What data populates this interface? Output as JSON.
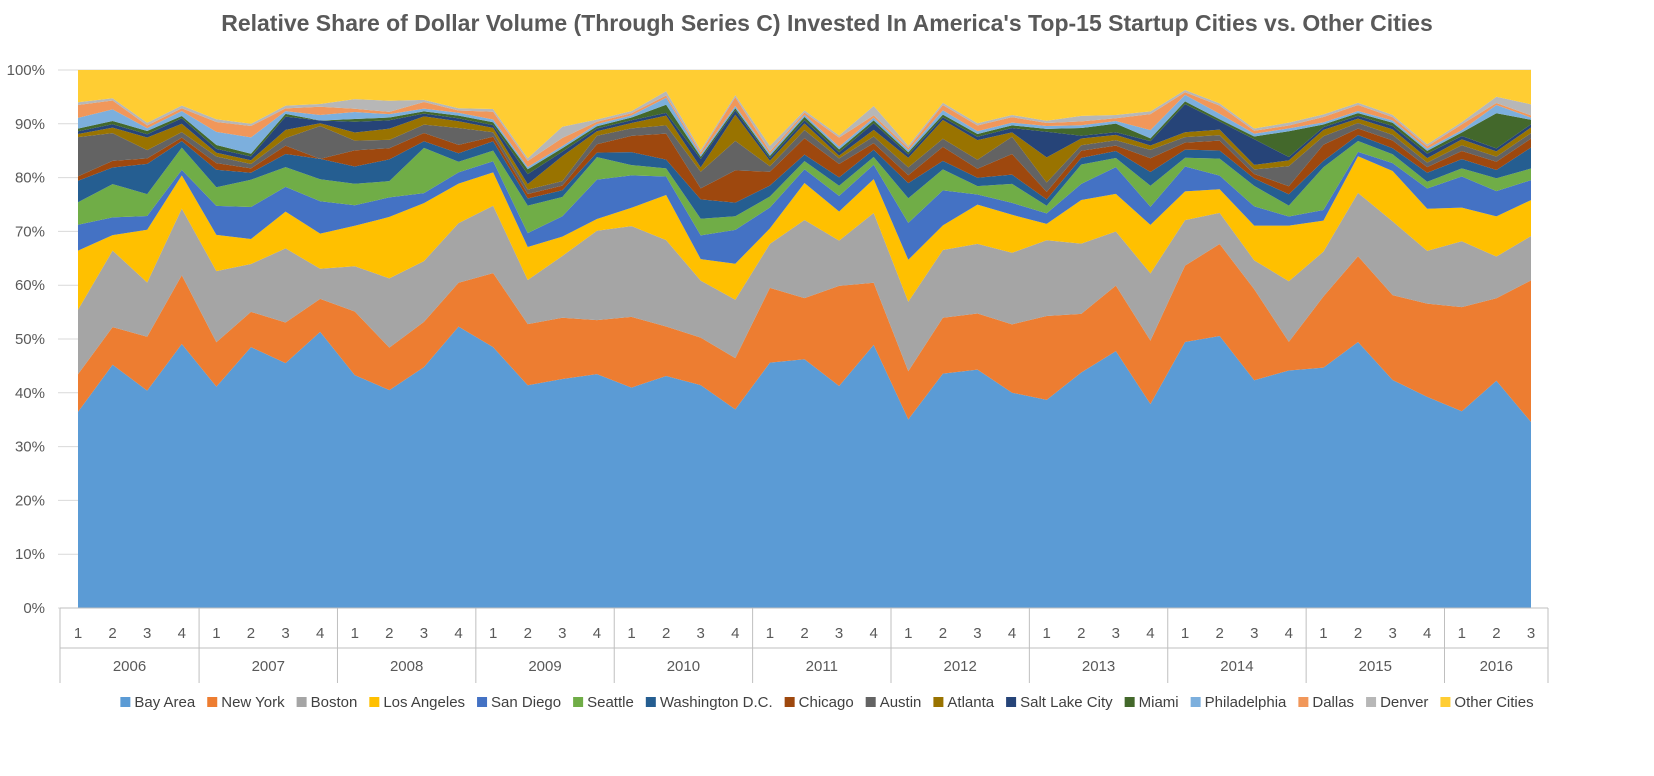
{
  "chart_data": {
    "type": "area",
    "stacked": "percent",
    "title": "Relative Share of Dollar Volume (Through Series C) Invested In America's Top-15 Startup Cities vs. Other Cities",
    "xlabel": "",
    "ylabel": "",
    "ylim": [
      0,
      100
    ],
    "y_ticks": [
      "0%",
      "10%",
      "20%",
      "30%",
      "40%",
      "50%",
      "60%",
      "70%",
      "80%",
      "90%",
      "100%"
    ],
    "x": [
      "1",
      "2",
      "3",
      "4",
      "1",
      "2",
      "3",
      "4",
      "1",
      "2",
      "3",
      "4",
      "1",
      "2",
      "3",
      "4",
      "1",
      "2",
      "3",
      "4",
      "1",
      "2",
      "3",
      "4",
      "1",
      "2",
      "3",
      "4",
      "1",
      "2",
      "3",
      "4",
      "1",
      "2",
      "3",
      "4",
      "1",
      "2",
      "3",
      "4",
      "1",
      "2",
      "3"
    ],
    "year_groups": [
      {
        "label": "2006",
        "count": 4
      },
      {
        "label": "2007",
        "count": 4
      },
      {
        "label": "2008",
        "count": 4
      },
      {
        "label": "2009",
        "count": 4
      },
      {
        "label": "2010",
        "count": 4
      },
      {
        "label": "2011",
        "count": 4
      },
      {
        "label": "2012",
        "count": 4
      },
      {
        "label": "2013",
        "count": 4
      },
      {
        "label": "2014",
        "count": 4
      },
      {
        "label": "2015",
        "count": 4
      },
      {
        "label": "2016",
        "count": 3
      }
    ],
    "grid": "horizontal",
    "legend_position": "bottom",
    "series": [
      {
        "name": "Bay Area",
        "color": "#5B9BD5",
        "values": [
          36.5,
          43.9,
          39.6,
          47.6,
          40.4,
          48.0,
          44.6,
          50.3,
          43.2,
          39.0,
          43.6,
          50.0,
          46.9,
          40.4,
          40.4,
          41.6,
          40.8,
          42.7,
          40.3,
          36.4,
          44.6,
          45.6,
          39.7,
          47.5,
          33.7,
          43.6,
          42.5,
          39.7,
          35.7,
          42.6,
          47.9,
          37.0,
          49.1,
          49.7,
          40.1,
          41.5,
          45.0,
          48.7,
          41.1,
          37.6,
          34.0,
          44.1,
          33.6
        ]
      },
      {
        "name": "New York",
        "color": "#ED7D31",
        "values": [
          7.0,
          6.8,
          9.8,
          12.4,
          8.1,
          6.5,
          7.4,
          6.0,
          11.8,
          7.6,
          8.2,
          7.8,
          13.3,
          11.1,
          10.8,
          9.6,
          13.1,
          9.1,
          8.6,
          9.4,
          13.6,
          11.2,
          17.9,
          11.2,
          8.6,
          10.4,
          10.0,
          12.6,
          14.4,
          10.6,
          12.2,
          11.5,
          14.1,
          16.8,
          16.0,
          5.0,
          13.3,
          15.7,
          15.3,
          16.6,
          18.0,
          16.0,
          25.6
        ]
      },
      {
        "name": "Boston",
        "color": "#A5A5A5",
        "values": [
          12.0,
          13.8,
          9.9,
          12.0,
          13.0,
          8.8,
          13.5,
          5.5,
          8.4,
          12.4,
          11.0,
          10.6,
          12.1,
          8.0,
          10.9,
          15.9,
          16.8,
          15.9,
          10.3,
          10.7,
          8.0,
          14.3,
          8.1,
          12.6,
          12.4,
          12.6,
          12.4,
          13.2,
          13.0,
          12.7,
          10.1,
          12.2,
          8.4,
          5.7,
          5.1,
          10.6,
          8.4,
          11.6,
          13.3,
          9.4,
          11.4,
          8.1,
          8.0
        ]
      },
      {
        "name": "Los Angeles",
        "color": "#FFC000",
        "values": [
          11.0,
          2.8,
          9.6,
          6.0,
          6.6,
          4.6,
          6.7,
          6.4,
          7.5,
          11.0,
          10.5,
          7.0,
          6.0,
          6.0,
          3.4,
          2.1,
          3.4,
          8.3,
          3.9,
          6.6,
          2.8,
          6.8,
          5.2,
          6.1,
          7.5,
          4.6,
          7.0,
          7.0,
          2.8,
          7.9,
          7.0,
          8.8,
          5.3,
          4.3,
          6.1,
          9.7,
          5.8,
          6.7,
          9.1,
          7.5,
          5.8,
          7.8,
          6.5
        ]
      },
      {
        "name": "San Diego",
        "color": "#4472C4",
        "values": [
          4.8,
          3.2,
          2.5,
          1.0,
          5.3,
          5.9,
          4.5,
          5.9,
          3.8,
          3.5,
          1.8,
          2.0,
          2.0,
          2.5,
          3.6,
          7.0,
          6.0,
          3.4,
          4.3,
          6.2,
          3.8,
          2.5,
          2.8,
          2.6,
          6.6,
          6.5,
          1.8,
          2.2,
          1.8,
          2.9,
          5.0,
          3.3,
          4.6,
          2.5,
          3.4,
          1.6,
          2.0,
          0.8,
          1.4,
          3.6,
          5.4,
          4.9,
          3.6
        ]
      },
      {
        "name": "Seattle",
        "color": "#70AD47",
        "values": [
          4.2,
          6.0,
          4.0,
          4.0,
          3.4,
          5.0,
          3.6,
          4.0,
          4.0,
          2.9,
          8.2,
          1.9,
          1.9,
          5.0,
          3.4,
          4.0,
          1.9,
          1.5,
          3.0,
          2.5,
          2.0,
          1.5,
          1.8,
          1.4,
          4.4,
          3.9,
          1.5,
          3.5,
          1.3,
          3.5,
          1.7,
          3.8,
          1.6,
          3.1,
          3.6,
          1.9,
          8.0,
          2.0,
          1.6,
          1.2,
          1.4,
          2.5,
          2.1
        ]
      },
      {
        "name": "Washington D.C.",
        "color": "#255E91",
        "values": [
          4.0,
          3.0,
          5.5,
          1.2,
          3.2,
          1.3,
          2.4,
          3.7,
          3.2,
          3.9,
          1.2,
          1.5,
          1.7,
          1.3,
          1.2,
          0.8,
          2.4,
          1.6,
          3.5,
          2.5,
          2.0,
          1.2,
          1.5,
          1.3,
          2.7,
          1.6,
          1.5,
          1.7,
          1.1,
          1.2,
          1.3,
          2.5,
          1.5,
          1.5,
          1.3,
          2.0,
          1.2,
          1.1,
          1.1,
          1.6,
          1.6,
          1.6,
          3.8
        ]
      },
      {
        "name": "Chicago",
        "color": "#9E480E",
        "values": [
          0.8,
          1.2,
          1.0,
          0.6,
          1.2,
          0.8,
          1.5,
          0.0,
          3.0,
          2.0,
          1.5,
          1.5,
          0.8,
          0.8,
          0.8,
          1.5,
          3.0,
          4.8,
          2.0,
          5.9,
          2.5,
          3.0,
          2.4,
          1.2,
          1.4,
          2.6,
          1.6,
          3.8,
          1.3,
          1.3,
          1.0,
          2.5,
          1.3,
          1.8,
          0.8,
          1.4,
          3.0,
          1.2,
          1.4,
          1.0,
          1.4,
          1.6,
          1.6
        ]
      },
      {
        "name": "Austin",
        "color": "#636363",
        "values": [
          7.3,
          5.0,
          1.5,
          1.0,
          1.2,
          0.8,
          1.4,
          6.0,
          1.8,
          1.5,
          1.5,
          3.0,
          0.8,
          0.8,
          0.8,
          1.5,
          1.4,
          1.5,
          3.0,
          5.4,
          1.0,
          1.5,
          1.0,
          1.2,
          1.4,
          1.5,
          1.6,
          3.2,
          1.6,
          1.0,
          1.0,
          1.5,
          1.0,
          1.0,
          0.8,
          3.5,
          1.6,
          1.0,
          1.0,
          0.8,
          1.0,
          1.0,
          1.0
        ]
      },
      {
        "name": "Atlanta",
        "color": "#997300",
        "values": [
          0.6,
          1.0,
          2.3,
          1.5,
          0.7,
          0.7,
          1.5,
          0.5,
          1.5,
          2.0,
          1.5,
          1.2,
          0.8,
          1.0,
          4.4,
          0.8,
          1.0,
          1.8,
          0.8,
          4.8,
          1.0,
          1.2,
          0.5,
          1.2,
          1.7,
          3.5,
          3.5,
          0.8,
          4.3,
          1.2,
          1.0,
          0.8,
          0.9,
          1.0,
          0.8,
          1.0,
          1.2,
          0.8,
          1.0,
          0.8,
          1.0,
          1.0,
          1.0
        ]
      },
      {
        "name": "Salt Lake City",
        "color": "#264478",
        "values": [
          0.5,
          0.6,
          0.6,
          1.0,
          0.7,
          0.7,
          2.4,
          0.5,
          2.0,
          1.5,
          0.5,
          0.5,
          0.5,
          1.8,
          0.8,
          0.5,
          0.5,
          0.5,
          1.5,
          0.8,
          0.5,
          0.6,
          0.6,
          1.2,
          0.6,
          0.5,
          0.6,
          0.8,
          4.4,
          0.5,
          0.5,
          0.8,
          5.2,
          1.5,
          4.5,
          0.6,
          0.5,
          0.5,
          0.6,
          0.8,
          0.6,
          0.6,
          0.6
        ]
      },
      {
        "name": "Miami",
        "color": "#43682B",
        "values": [
          0.5,
          0.6,
          0.6,
          0.4,
          0.7,
          0.5,
          0.5,
          0.0,
          0.5,
          0.5,
          0.4,
          0.5,
          0.5,
          0.9,
          0.6,
          0.4,
          0.5,
          1.5,
          0.4,
          0.4,
          0.4,
          0.6,
          0.5,
          0.5,
          0.4,
          0.5,
          0.5,
          0.5,
          0.5,
          1.4,
          1.6,
          0.5,
          0.5,
          0.4,
          0.5,
          4.5,
          0.5,
          0.5,
          0.6,
          0.5,
          0.6,
          6.8,
          0.8
        ]
      },
      {
        "name": "Philadelphia",
        "color": "#7CAFDD",
        "values": [
          2.0,
          2.1,
          0.5,
          0.9,
          2.4,
          3.0,
          0.5,
          1.0,
          1.3,
          0.6,
          0.5,
          0.5,
          0.5,
          0.4,
          0.4,
          0.4,
          0.4,
          1.3,
          0.4,
          0.4,
          0.4,
          0.4,
          0.5,
          0.5,
          0.4,
          0.8,
          0.5,
          0.5,
          0.5,
          0.5,
          0.5,
          1.5,
          1.2,
          1.0,
          0.5,
          0.5,
          0.4,
          0.4,
          0.4,
          0.4,
          0.4,
          1.6,
          0.4
        ]
      },
      {
        "name": "Dallas",
        "color": "#F1975A",
        "values": [
          2.4,
          1.6,
          0.5,
          0.5,
          1.8,
          2.1,
          0.5,
          1.5,
          0.6,
          0.4,
          1.2,
          0.4,
          1.4,
          1.1,
          1.4,
          0.4,
          0.4,
          0.4,
          0.4,
          1.6,
          0.4,
          0.4,
          1.6,
          0.4,
          0.4,
          1.0,
          1.0,
          1.0,
          0.5,
          0.7,
          0.5,
          2.9,
          0.5,
          1.5,
          0.5,
          0.5,
          1.0,
          1.1,
          0.6,
          0.4,
          1.0,
          0.4,
          0.4
        ]
      },
      {
        "name": "Denver",
        "color": "#B7B7B7",
        "values": [
          0.5,
          0.4,
          0.5,
          0.5,
          0.5,
          0.4,
          0.5,
          0.5,
          1.8,
          2.0,
          0.4,
          0.4,
          0.5,
          0.5,
          2.0,
          0.4,
          0.4,
          0.8,
          0.4,
          0.4,
          1.0,
          0.4,
          0.4,
          1.7,
          0.4,
          0.4,
          0.4,
          0.4,
          0.4,
          1.0,
          0.6,
          0.5,
          0.4,
          0.4,
          0.4,
          0.5,
          0.5,
          0.4,
          0.4,
          0.4,
          0.4,
          1.2,
          2.0
        ]
      },
      {
        "name": "Other Cities",
        "color": "#FFCD33",
        "values": [
          6.0,
          5.1,
          9.6,
          6.4,
          9.0,
          9.9,
          6.5,
          6.2,
          5.4,
          5.5,
          5.4,
          6.8,
          7.0,
          16.0,
          10.0,
          8.8,
          7.6,
          3.9,
          14.5,
          4.6,
          13.8,
          7.4,
          11.7,
          6.5,
          13.5,
          6.1,
          9.5,
          8.3,
          8.7,
          8.3,
          8.4,
          7.5,
          3.7,
          6.1,
          10.3,
          9.2,
          8.3,
          6.0,
          8.1,
          13.2,
          9.0,
          5.2,
          6.2
        ]
      }
    ]
  }
}
